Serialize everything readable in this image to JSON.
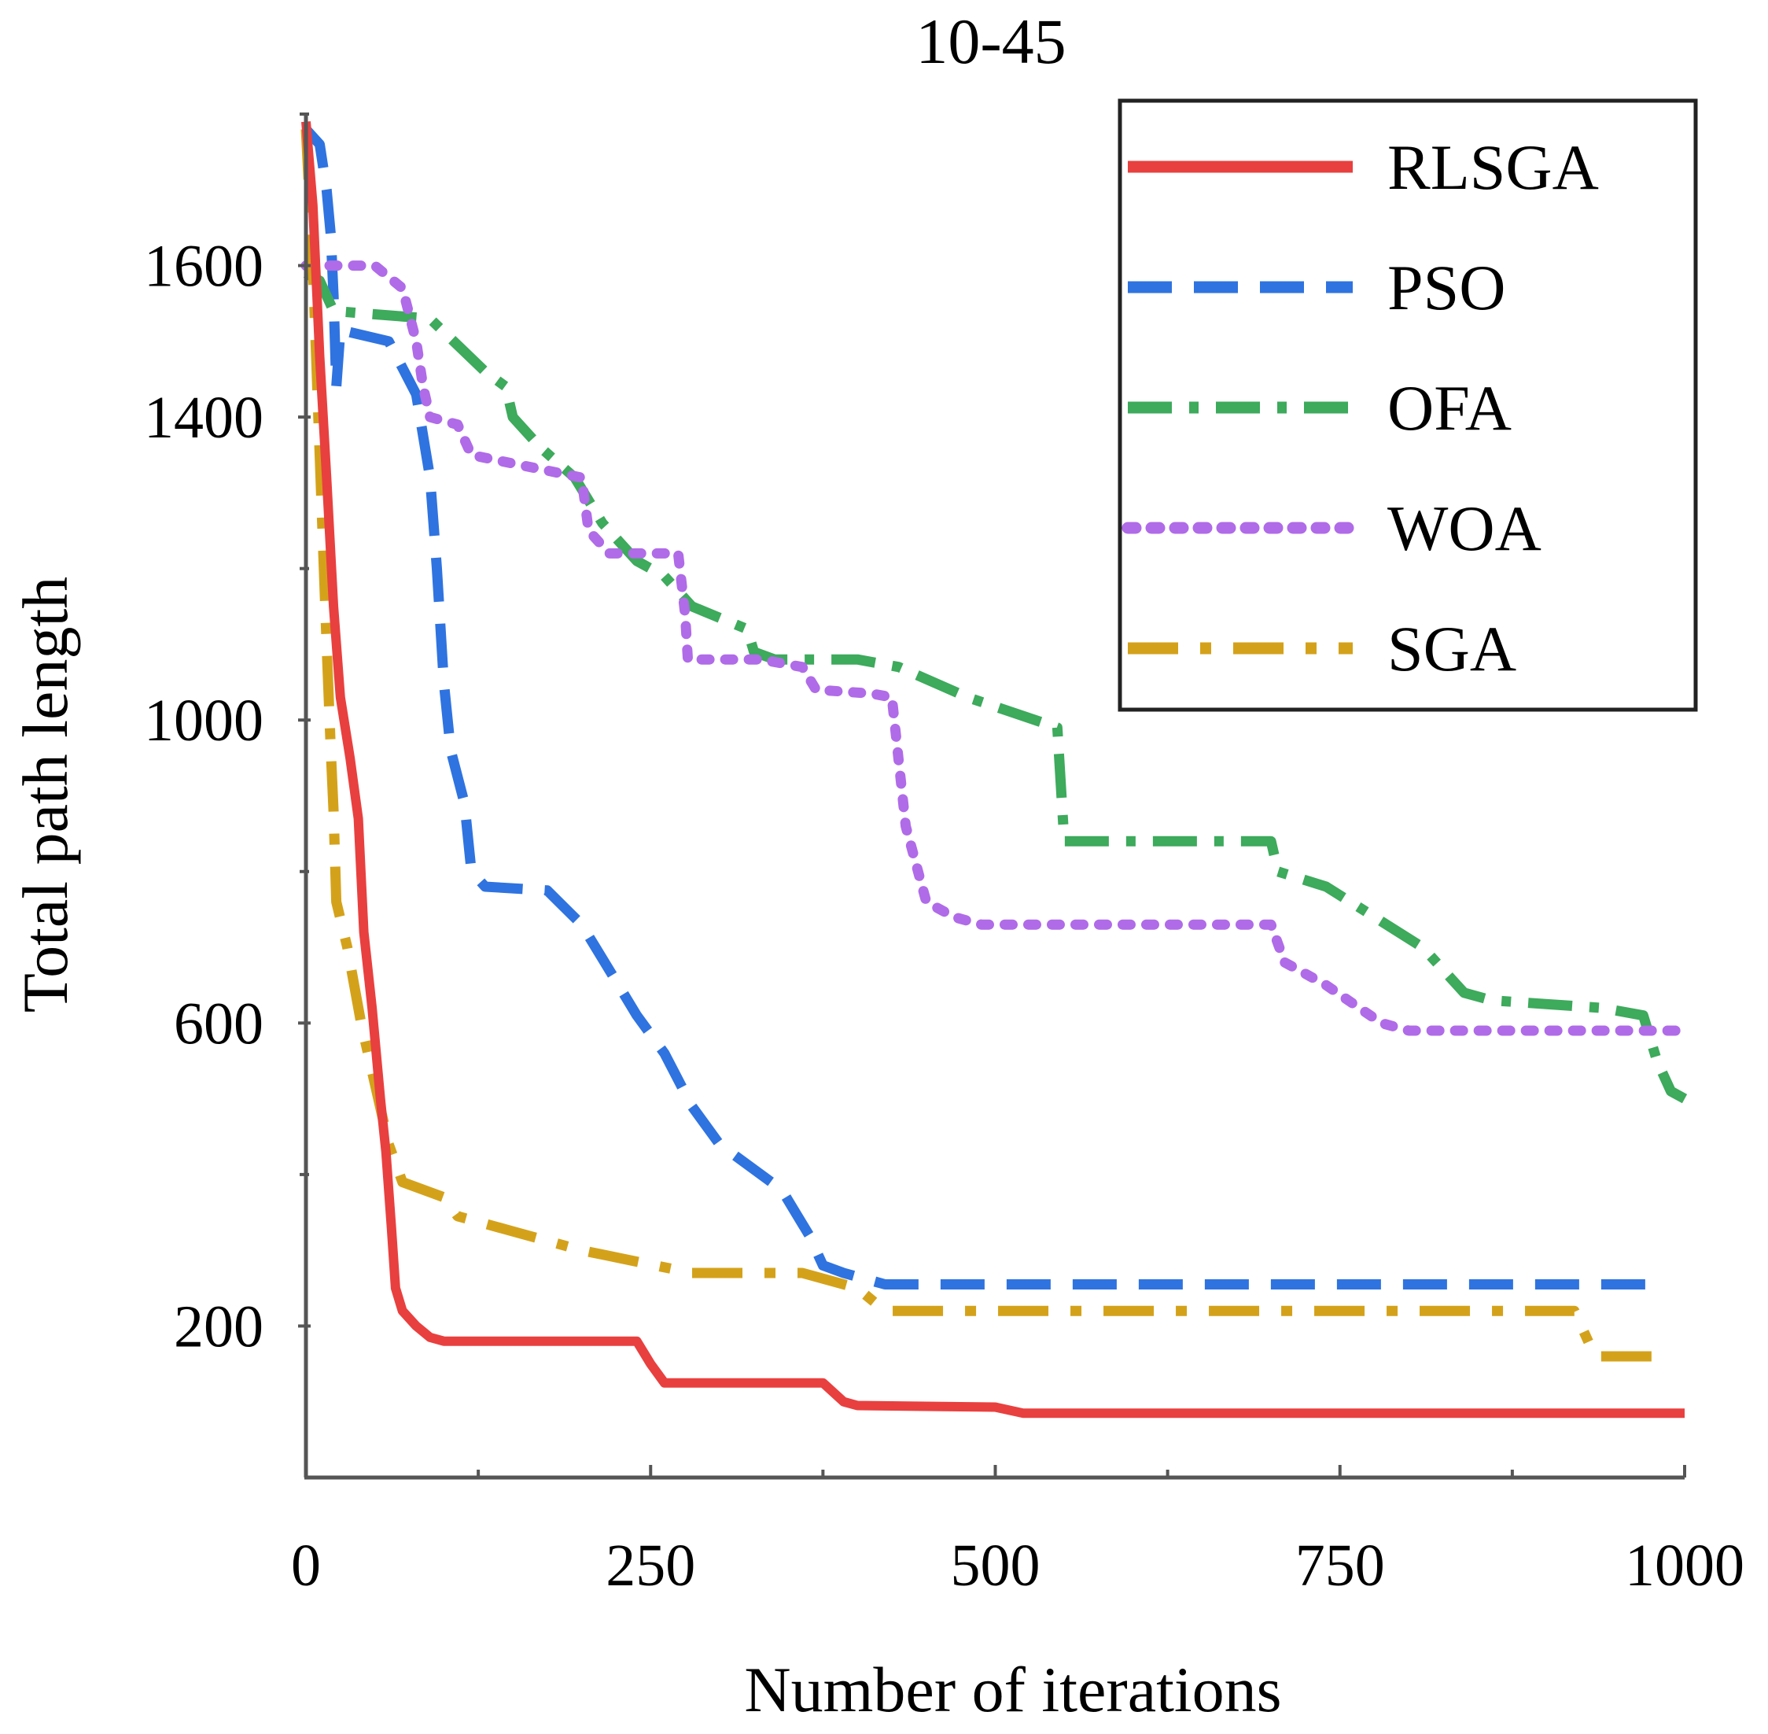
{
  "chart_data": {
    "type": "line",
    "title": "10-45",
    "xlabel": "Number of iterations",
    "ylabel": "Total path length",
    "xlim": [
      0,
      1000
    ],
    "ylim": [
      0,
      1800
    ],
    "x_ticks": [
      0,
      250,
      500,
      750,
      1000
    ],
    "x_minor_ticks": [
      125,
      375,
      625,
      875
    ],
    "y_ticks": [
      200,
      600,
      1000,
      1400,
      1600
    ],
    "y_minor_ticks": [
      400,
      800,
      1200,
      1800
    ],
    "legend_position": "top-right",
    "grid": false,
    "series": [
      {
        "name": "RLSGA",
        "color": "#e8403f",
        "style": "solid",
        "points": [
          [
            0,
            1790
          ],
          [
            5,
            1680
          ],
          [
            10,
            1480
          ],
          [
            15,
            1320
          ],
          [
            20,
            1150
          ],
          [
            25,
            1030
          ],
          [
            32,
            950
          ],
          [
            38,
            870
          ],
          [
            42,
            720
          ],
          [
            48,
            620
          ],
          [
            54,
            500
          ],
          [
            58,
            430
          ],
          [
            62,
            330
          ],
          [
            65,
            250
          ],
          [
            70,
            220
          ],
          [
            80,
            200
          ],
          [
            90,
            185
          ],
          [
            100,
            180
          ],
          [
            240,
            180
          ],
          [
            250,
            150
          ],
          [
            260,
            125
          ],
          [
            375,
            125
          ],
          [
            390,
            100
          ],
          [
            400,
            95
          ],
          [
            500,
            93
          ],
          [
            520,
            85
          ],
          [
            1000,
            85
          ]
        ]
      },
      {
        "name": "PSO",
        "color": "#2f73e0",
        "style": "dashed",
        "points": [
          [
            0,
            1780
          ],
          [
            10,
            1760
          ],
          [
            15,
            1700
          ],
          [
            18,
            1640
          ],
          [
            20,
            1560
          ],
          [
            22,
            1440
          ],
          [
            25,
            1515
          ],
          [
            60,
            1500
          ],
          [
            80,
            1430
          ],
          [
            90,
            1320
          ],
          [
            95,
            1200
          ],
          [
            100,
            1050
          ],
          [
            105,
            960
          ],
          [
            115,
            890
          ],
          [
            120,
            800
          ],
          [
            130,
            780
          ],
          [
            175,
            775
          ],
          [
            200,
            730
          ],
          [
            220,
            670
          ],
          [
            240,
            610
          ],
          [
            260,
            560
          ],
          [
            280,
            490
          ],
          [
            300,
            440
          ],
          [
            330,
            400
          ],
          [
            345,
            380
          ],
          [
            365,
            320
          ],
          [
            375,
            280
          ],
          [
            390,
            270
          ],
          [
            420,
            255
          ],
          [
            980,
            255
          ]
        ]
      },
      {
        "name": "OFA",
        "color": "#3daa5c",
        "style": "dashdot",
        "points": [
          [
            0,
            1590
          ],
          [
            10,
            1580
          ],
          [
            20,
            1540
          ],
          [
            90,
            1530
          ],
          [
            130,
            1460
          ],
          [
            145,
            1440
          ],
          [
            150,
            1400
          ],
          [
            170,
            1360
          ],
          [
            195,
            1320
          ],
          [
            215,
            1260
          ],
          [
            240,
            1210
          ],
          [
            260,
            1190
          ],
          [
            280,
            1150
          ],
          [
            320,
            1120
          ],
          [
            325,
            1090
          ],
          [
            340,
            1080
          ],
          [
            400,
            1080
          ],
          [
            430,
            1070
          ],
          [
            480,
            1030
          ],
          [
            545,
            990
          ],
          [
            550,
            840
          ],
          [
            700,
            840
          ],
          [
            705,
            800
          ],
          [
            740,
            780
          ],
          [
            775,
            740
          ],
          [
            810,
            700
          ],
          [
            840,
            640
          ],
          [
            860,
            630
          ],
          [
            940,
            620
          ],
          [
            970,
            610
          ],
          [
            980,
            550
          ],
          [
            990,
            510
          ],
          [
            1000,
            500
          ]
        ]
      },
      {
        "name": "WOA",
        "color": "#b06be8",
        "style": "dotted",
        "points": [
          [
            0,
            1600
          ],
          [
            50,
            1600
          ],
          [
            70,
            1570
          ],
          [
            80,
            1500
          ],
          [
            85,
            1440
          ],
          [
            90,
            1400
          ],
          [
            110,
            1390
          ],
          [
            120,
            1350
          ],
          [
            200,
            1320
          ],
          [
            205,
            1250
          ],
          [
            220,
            1220
          ],
          [
            270,
            1220
          ],
          [
            275,
            1140
          ],
          [
            277,
            1080
          ],
          [
            330,
            1080
          ],
          [
            360,
            1070
          ],
          [
            370,
            1040
          ],
          [
            410,
            1035
          ],
          [
            425,
            1030
          ],
          [
            435,
            860
          ],
          [
            450,
            760
          ],
          [
            470,
            740
          ],
          [
            490,
            730
          ],
          [
            700,
            730
          ],
          [
            710,
            680
          ],
          [
            740,
            650
          ],
          [
            780,
            600
          ],
          [
            800,
            590
          ],
          [
            1000,
            590
          ]
        ]
      },
      {
        "name": "SGA",
        "color": "#d4a21a",
        "style": "longdashdot",
        "points": [
          [
            0,
            1780
          ],
          [
            5,
            1600
          ],
          [
            10,
            1350
          ],
          [
            15,
            1100
          ],
          [
            18,
            960
          ],
          [
            20,
            880
          ],
          [
            22,
            760
          ],
          [
            30,
            700
          ],
          [
            40,
            600
          ],
          [
            50,
            520
          ],
          [
            60,
            440
          ],
          [
            70,
            390
          ],
          [
            100,
            370
          ],
          [
            110,
            345
          ],
          [
            150,
            325
          ],
          [
            200,
            300
          ],
          [
            280,
            270
          ],
          [
            360,
            270
          ],
          [
            400,
            250
          ],
          [
            420,
            220
          ],
          [
            920,
            220
          ],
          [
            935,
            160
          ],
          [
            980,
            160
          ]
        ]
      }
    ]
  }
}
